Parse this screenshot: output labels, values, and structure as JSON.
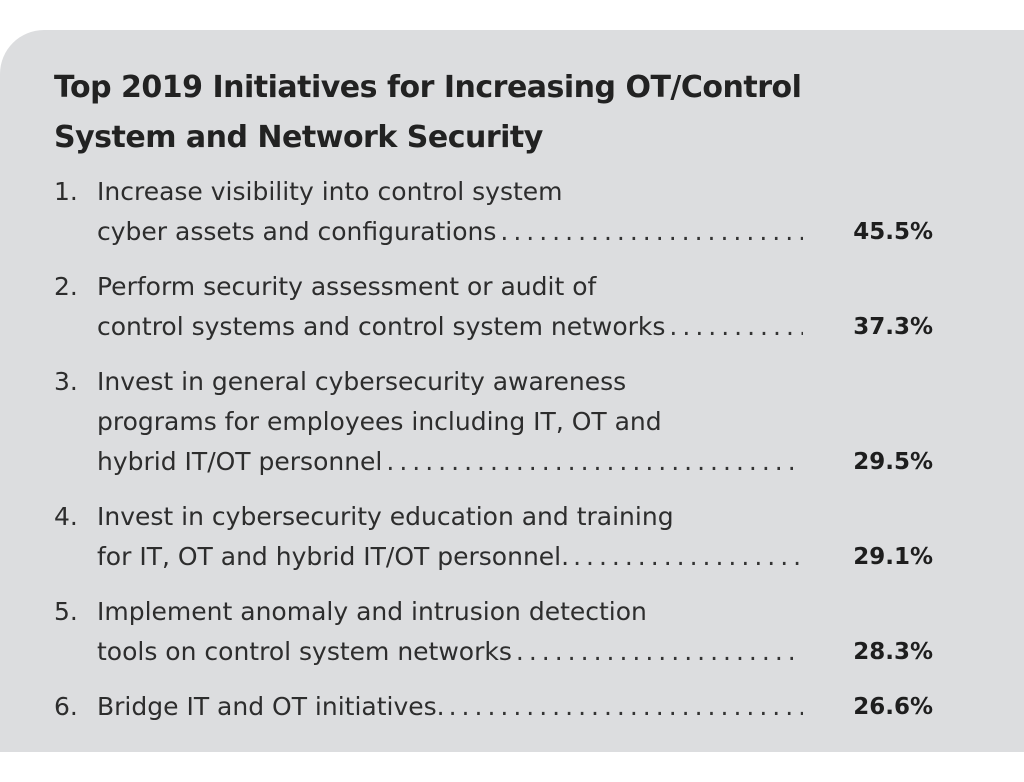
{
  "title_lines": [
    "Top 2019 Initiatives for Increasing OT/Control",
    "System and Network Security"
  ],
  "items": [
    {
      "number": "1.",
      "lines": [
        "Increase visibility into control system",
        "cyber assets and configurations"
      ],
      "percent": "45.5%"
    },
    {
      "number": "2.",
      "lines": [
        "Perform security assessment or audit of",
        "control systems and control system networks"
      ],
      "percent": "37.3%"
    },
    {
      "number": "3.",
      "lines": [
        "Invest in general cybersecurity awareness",
        "programs for employees including IT, OT and",
        "hybrid IT/OT personnel"
      ],
      "percent": "29.5%"
    },
    {
      "number": "4.",
      "lines": [
        "Invest in cybersecurity education and training",
        "for IT, OT and hybrid IT/OT personnel."
      ],
      "percent": "29.1%"
    },
    {
      "number": "5.",
      "lines": [
        "Implement anomaly and intrusion detection",
        "tools on control system networks"
      ],
      "percent": "28.3%"
    },
    {
      "number": "6.",
      "lines": [
        "Bridge IT and OT initiatives."
      ],
      "percent": "26.6%"
    }
  ],
  "colors": {
    "panel_background": "#dcdddf",
    "text": "#2d2d2d"
  }
}
